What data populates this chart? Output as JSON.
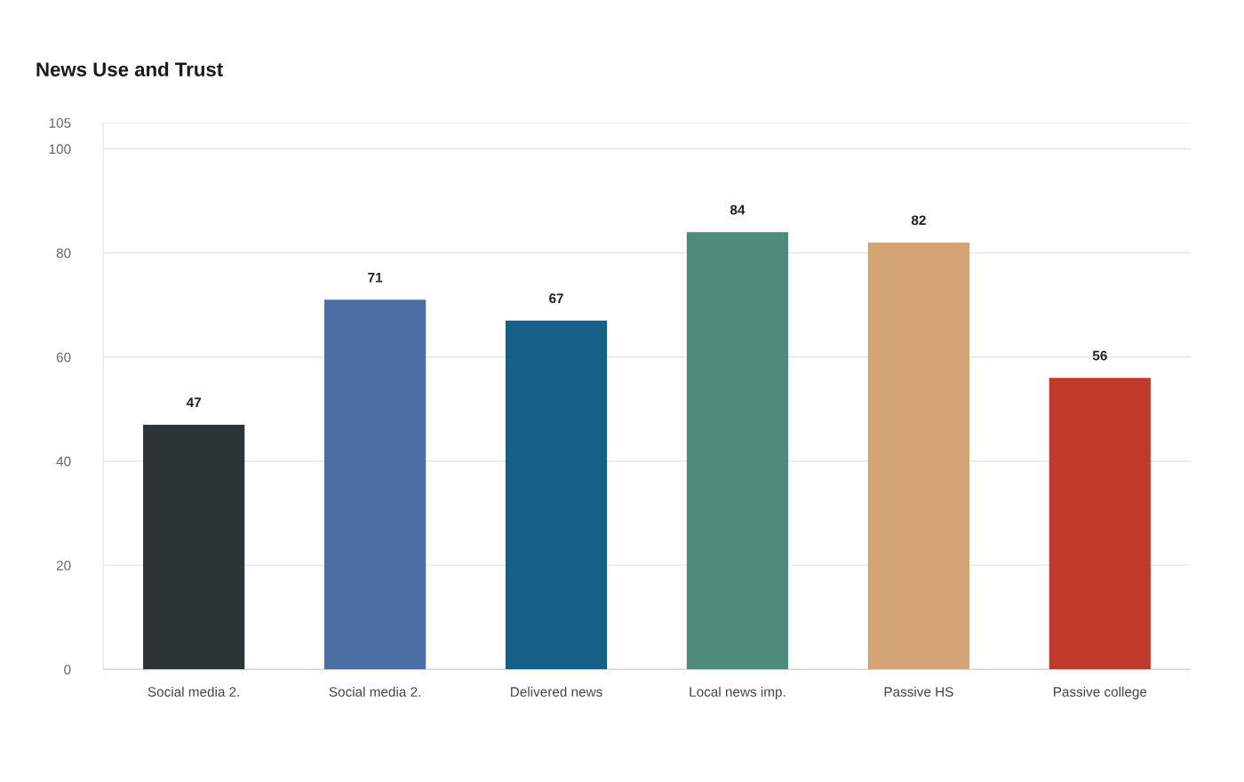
{
  "chart_data": {
    "type": "bar",
    "title": "News Use and Trust",
    "categories": [
      "Social media 2.",
      "Social media 2.",
      "Delivered news",
      "Local news imp.",
      "Passive HS",
      "Passive college"
    ],
    "values": [
      47,
      71,
      67,
      84,
      82,
      56
    ],
    "colors": [
      "#2d3436",
      "#4a6fa5",
      "#166088",
      "#4e8b7a",
      "#d4a373",
      "#c0392b"
    ],
    "ylim": [
      0,
      105
    ],
    "yticks": [
      0,
      20,
      40,
      60,
      80,
      100,
      105
    ],
    "grid": "y",
    "data_labels": true
  }
}
